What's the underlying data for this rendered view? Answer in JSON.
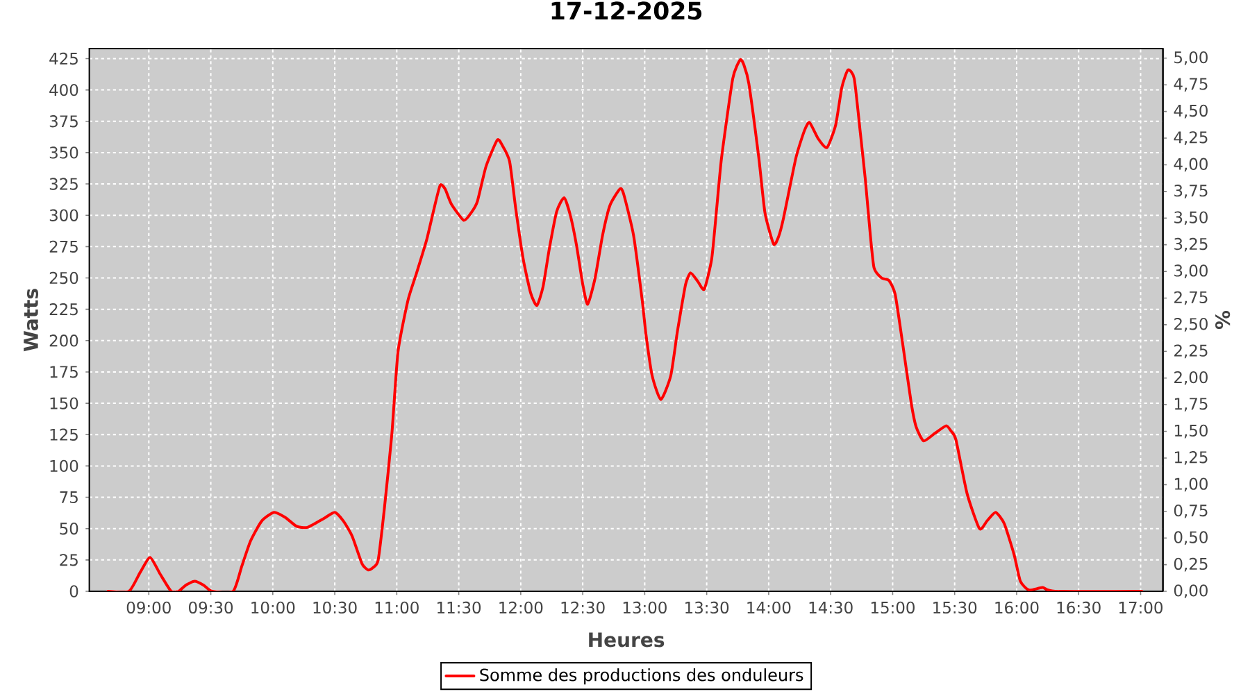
{
  "chart_data": {
    "type": "line",
    "title": "17-12-2025",
    "xlabel": "Heures",
    "ylabel": "Watts",
    "y2label": "%",
    "x": [
      8.67,
      8.84,
      8.93,
      9.01,
      9.09,
      9.18,
      9.24,
      9.3,
      9.37,
      9.44,
      9.51,
      9.68,
      9.75,
      9.82,
      9.91,
      10.01,
      10.1,
      10.19,
      10.28,
      10.41,
      10.5,
      10.57,
      10.64,
      10.72,
      10.77,
      10.81,
      10.85,
      10.9,
      10.96,
      11.01,
      11.09,
      11.16,
      11.24,
      11.3,
      11.35,
      11.39,
      11.44,
      11.54,
      11.6,
      11.65,
      11.72,
      11.81,
      11.85,
      11.91,
      11.96,
      12.02,
      12.08,
      12.13,
      12.18,
      12.23,
      12.29,
      12.35,
      12.4,
      12.45,
      12.5,
      12.54,
      12.6,
      12.66,
      12.72,
      12.8,
      12.83,
      12.91,
      12.98,
      13.01,
      13.06,
      13.13,
      13.21,
      13.26,
      13.28,
      13.33,
      13.37,
      13.43,
      13.48,
      13.54,
      13.58,
      13.62,
      13.71,
      13.77,
      13.8,
      13.84,
      13.92,
      13.97,
      14.04,
      14.08,
      14.12,
      14.22,
      14.29,
      14.33,
      14.4,
      14.47,
      14.54,
      14.59,
      14.64,
      14.69,
      14.74,
      14.78,
      14.82,
      14.85,
      14.91,
      14.97,
      15.02,
      15.08,
      15.15,
      15.19,
      15.25,
      15.34,
      15.43,
      15.47,
      15.51,
      15.6,
      15.7,
      15.76,
      15.83,
      15.9,
      15.98,
      16.03,
      16.1,
      16.21,
      16.31,
      17.01
    ],
    "series": [
      {
        "name": "Somme des productions des onduleurs",
        "color": "#ff0000",
        "values": [
          0,
          0,
          15,
          27,
          14,
          0,
          0,
          5,
          8,
          5,
          0,
          0,
          20,
          40,
          56,
          63,
          59,
          52,
          51,
          58,
          63,
          56,
          44,
          22,
          17,
          19,
          25,
          66,
          125,
          191,
          232,
          254,
          280,
          305,
          324,
          321,
          309,
          296,
          302,
          311,
          339,
          360,
          356,
          343,
          305,
          265,
          238,
          228,
          243,
          273,
          303,
          314,
          300,
          276,
          245,
          229,
          250,
          284,
          308,
          321,
          317,
          284,
          232,
          205,
          172,
          153,
          172,
          205,
          217,
          245,
          254,
          247,
          241,
          265,
          305,
          346,
          409,
          424,
          420,
          405,
          346,
          302,
          277,
          283,
          298,
          346,
          368,
          374,
          361,
          354,
          372,
          402,
          416,
          409,
          365,
          328,
          284,
          258,
          250,
          248,
          237,
          198,
          150,
          131,
          120,
          126,
          132,
          128,
          121,
          78,
          50,
          56,
          63,
          54,
          29,
          8,
          1,
          3,
          0,
          0
        ]
      }
    ],
    "xlim": [
      8.52,
      17.18
    ],
    "xticks": [
      {
        "value": 9,
        "label": "09:00"
      },
      {
        "value": 9.5,
        "label": "09:30"
      },
      {
        "value": 10,
        "label": "10:00"
      },
      {
        "value": 10.5,
        "label": "10:30"
      },
      {
        "value": 11,
        "label": "11:00"
      },
      {
        "value": 11.5,
        "label": "11:30"
      },
      {
        "value": 12,
        "label": "12:00"
      },
      {
        "value": 12.5,
        "label": "12:30"
      },
      {
        "value": 13,
        "label": "13:00"
      },
      {
        "value": 13.5,
        "label": "13:30"
      },
      {
        "value": 14,
        "label": "14:00"
      },
      {
        "value": 14.5,
        "label": "14:30"
      },
      {
        "value": 15,
        "label": "15:00"
      },
      {
        "value": 15.5,
        "label": "15:30"
      },
      {
        "value": 16,
        "label": "16:00"
      },
      {
        "value": 16.5,
        "label": "16:30"
      },
      {
        "value": 17,
        "label": "17:00"
      }
    ],
    "ylim": [
      0,
      433
    ],
    "yticks": [
      0,
      25,
      50,
      75,
      100,
      125,
      150,
      175,
      200,
      225,
      250,
      275,
      300,
      325,
      350,
      375,
      400,
      425
    ],
    "y2lim": [
      0,
      5.09
    ],
    "y2ticks": [
      {
        "value": 0,
        "label": "0,00"
      },
      {
        "value": 0.25,
        "label": "0,25"
      },
      {
        "value": 0.5,
        "label": "0,50"
      },
      {
        "value": 0.75,
        "label": "0,75"
      },
      {
        "value": 1,
        "label": "1,00"
      },
      {
        "value": 1.25,
        "label": "1,25"
      },
      {
        "value": 1.5,
        "label": "1,50"
      },
      {
        "value": 1.75,
        "label": "1,75"
      },
      {
        "value": 2,
        "label": "2,00"
      },
      {
        "value": 2.25,
        "label": "2,25"
      },
      {
        "value": 2.5,
        "label": "2,50"
      },
      {
        "value": 2.75,
        "label": "2,75"
      },
      {
        "value": 3,
        "label": "3,00"
      },
      {
        "value": 3.25,
        "label": "3,25"
      },
      {
        "value": 3.5,
        "label": "3,50"
      },
      {
        "value": 3.75,
        "label": "3,75"
      },
      {
        "value": 4,
        "label": "4,00"
      },
      {
        "value": 4.25,
        "label": "4,25"
      },
      {
        "value": 4.5,
        "label": "4,50"
      },
      {
        "value": 4.75,
        "label": "4,75"
      },
      {
        "value": 5,
        "label": "5,00"
      }
    ],
    "grid": true,
    "legend": "bottom"
  }
}
